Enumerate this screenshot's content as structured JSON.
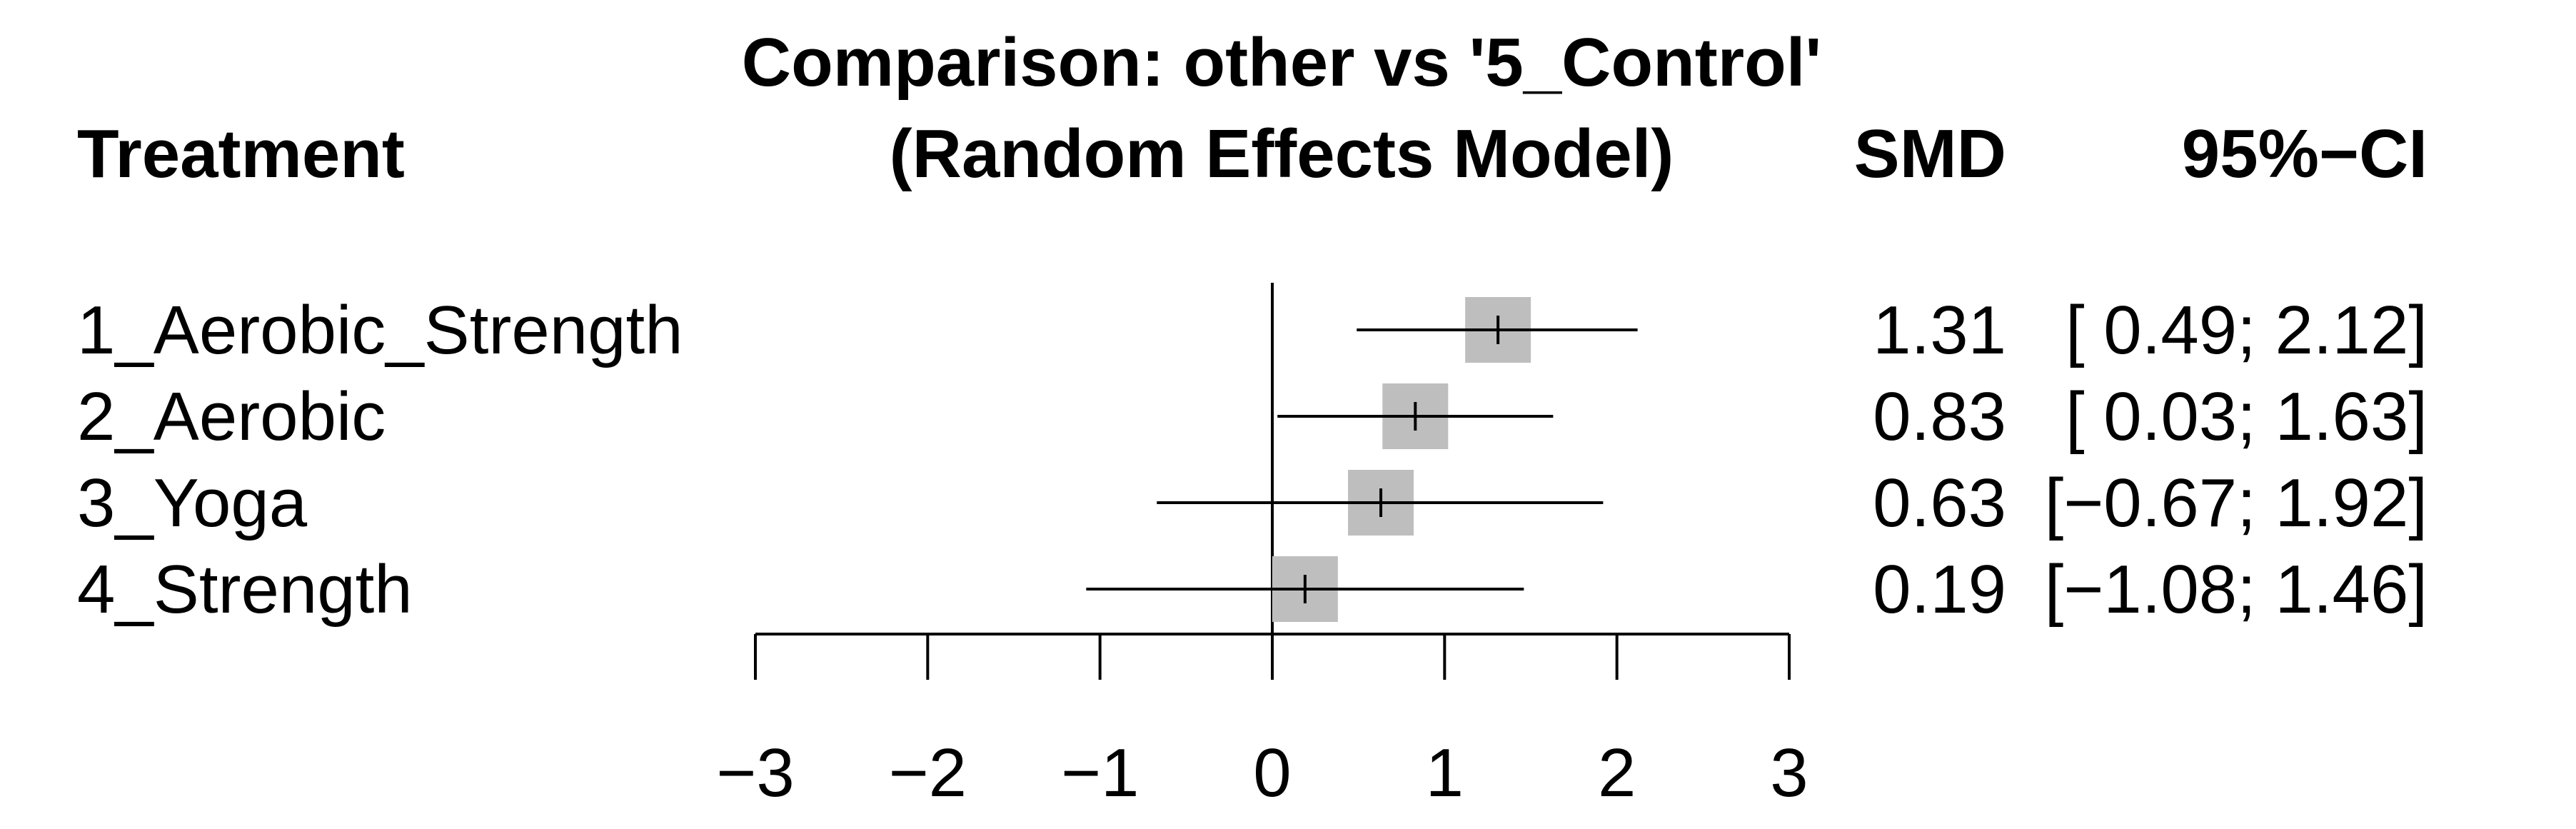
{
  "chart_data": {
    "type": "forest",
    "title_line1": "Comparison: other vs '5_Control'",
    "title_line2": "(Random Effects Model)",
    "column_headers": {
      "treatment": "Treatment",
      "smd": "SMD",
      "ci": "95%−CI"
    },
    "xlim": [
      -3,
      3
    ],
    "ticks": [
      -3,
      -2,
      -1,
      0,
      1,
      2,
      3
    ],
    "tick_labels": [
      "−3",
      "−2",
      "−1",
      "0",
      "1",
      "2",
      "3"
    ],
    "reference_line": 0,
    "rows": [
      {
        "label": "1_Aerobic_Strength",
        "smd": 1.31,
        "lower": 0.49,
        "upper": 2.12,
        "smd_text": "1.31",
        "ci_text": "[ 0.49; 2.12]"
      },
      {
        "label": "2_Aerobic",
        "smd": 0.83,
        "lower": 0.03,
        "upper": 1.63,
        "smd_text": "0.83",
        "ci_text": "[ 0.03; 1.63]"
      },
      {
        "label": "3_Yoga",
        "smd": 0.63,
        "lower": -0.67,
        "upper": 1.92,
        "smd_text": "0.63",
        "ci_text": "[−0.67; 1.92]"
      },
      {
        "label": "4_Strength",
        "smd": 0.19,
        "lower": -1.08,
        "upper": 1.46,
        "smd_text": "0.19",
        "ci_text": "[−1.08; 1.46]"
      }
    ],
    "colors": {
      "box": "#bebebe",
      "line": "#000000",
      "text": "#000000"
    }
  }
}
